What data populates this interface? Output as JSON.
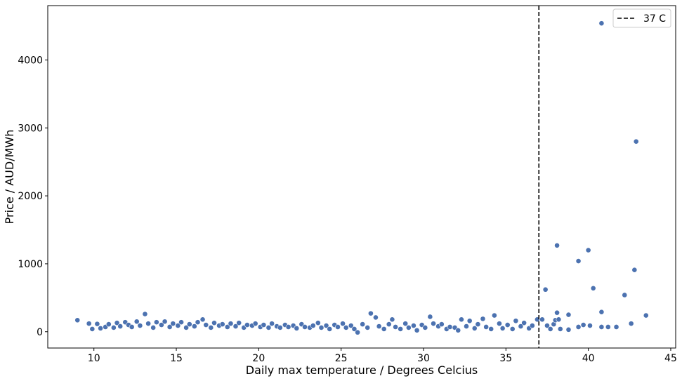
{
  "chart_data": {
    "type": "scatter",
    "xlabel": "Daily max temperature / Degrees Celcius",
    "ylabel": "Price / AUD/MWh",
    "xlim": [
      7.2,
      45.3
    ],
    "ylim": [
      -240,
      4800
    ],
    "x_ticks": [
      10,
      15,
      20,
      25,
      30,
      35,
      40,
      45
    ],
    "y_ticks": [
      0,
      1000,
      2000,
      3000,
      4000
    ],
    "grid": false,
    "marker_color": "#4c72b0",
    "marker_edge_color": "#ffffff",
    "reference_line": {
      "x": 37,
      "style": "dashed",
      "color": "#000000",
      "label": "37 C"
    },
    "legend": {
      "position": "top-right",
      "entries": [
        "37 C"
      ]
    },
    "series": [
      {
        "points": [
          {
            "x": 9.0,
            "y": 170
          },
          {
            "x": 9.7,
            "y": 120
          },
          {
            "x": 9.9,
            "y": 40
          },
          {
            "x": 10.2,
            "y": 115
          },
          {
            "x": 10.4,
            "y": 50
          },
          {
            "x": 10.7,
            "y": 70
          },
          {
            "x": 10.9,
            "y": 110
          },
          {
            "x": 11.2,
            "y": 60
          },
          {
            "x": 11.4,
            "y": 130
          },
          {
            "x": 11.6,
            "y": 80
          },
          {
            "x": 11.9,
            "y": 140
          },
          {
            "x": 12.1,
            "y": 100
          },
          {
            "x": 12.3,
            "y": 70
          },
          {
            "x": 12.6,
            "y": 150
          },
          {
            "x": 12.8,
            "y": 90
          },
          {
            "x": 13.1,
            "y": 260
          },
          {
            "x": 13.3,
            "y": 120
          },
          {
            "x": 13.6,
            "y": 60
          },
          {
            "x": 13.8,
            "y": 140
          },
          {
            "x": 14.1,
            "y": 100
          },
          {
            "x": 14.3,
            "y": 150
          },
          {
            "x": 14.6,
            "y": 70
          },
          {
            "x": 14.8,
            "y": 120
          },
          {
            "x": 15.1,
            "y": 90
          },
          {
            "x": 15.3,
            "y": 140
          },
          {
            "x": 15.6,
            "y": 60
          },
          {
            "x": 15.8,
            "y": 110
          },
          {
            "x": 16.1,
            "y": 80
          },
          {
            "x": 16.3,
            "y": 140
          },
          {
            "x": 16.6,
            "y": 180
          },
          {
            "x": 16.8,
            "y": 100
          },
          {
            "x": 17.1,
            "y": 60
          },
          {
            "x": 17.3,
            "y": 130
          },
          {
            "x": 17.6,
            "y": 90
          },
          {
            "x": 17.8,
            "y": 110
          },
          {
            "x": 18.1,
            "y": 70
          },
          {
            "x": 18.3,
            "y": 120
          },
          {
            "x": 18.6,
            "y": 80
          },
          {
            "x": 18.8,
            "y": 130
          },
          {
            "x": 19.1,
            "y": 60
          },
          {
            "x": 19.3,
            "y": 100
          },
          {
            "x": 19.6,
            "y": 90
          },
          {
            "x": 19.8,
            "y": 120
          },
          {
            "x": 20.1,
            "y": 70
          },
          {
            "x": 20.3,
            "y": 100
          },
          {
            "x": 20.6,
            "y": 60
          },
          {
            "x": 20.8,
            "y": 120
          },
          {
            "x": 21.1,
            "y": 80
          },
          {
            "x": 21.3,
            "y": 60
          },
          {
            "x": 21.6,
            "y": 100
          },
          {
            "x": 21.8,
            "y": 70
          },
          {
            "x": 22.1,
            "y": 90
          },
          {
            "x": 22.3,
            "y": 50
          },
          {
            "x": 22.6,
            "y": 110
          },
          {
            "x": 22.8,
            "y": 70
          },
          {
            "x": 23.1,
            "y": 60
          },
          {
            "x": 23.3,
            "y": 90
          },
          {
            "x": 23.6,
            "y": 130
          },
          {
            "x": 23.8,
            "y": 60
          },
          {
            "x": 24.1,
            "y": 90
          },
          {
            "x": 24.3,
            "y": 40
          },
          {
            "x": 24.6,
            "y": 100
          },
          {
            "x": 24.8,
            "y": 70
          },
          {
            "x": 25.1,
            "y": 120
          },
          {
            "x": 25.3,
            "y": 60
          },
          {
            "x": 25.6,
            "y": 90
          },
          {
            "x": 25.8,
            "y": 40
          },
          {
            "x": 26.0,
            "y": -10
          },
          {
            "x": 26.3,
            "y": 110
          },
          {
            "x": 26.6,
            "y": 60
          },
          {
            "x": 26.8,
            "y": 270
          },
          {
            "x": 27.1,
            "y": 210
          },
          {
            "x": 27.3,
            "y": 80
          },
          {
            "x": 27.6,
            "y": 40
          },
          {
            "x": 27.9,
            "y": 110
          },
          {
            "x": 28.1,
            "y": 180
          },
          {
            "x": 28.3,
            "y": 70
          },
          {
            "x": 28.6,
            "y": 40
          },
          {
            "x": 28.9,
            "y": 120
          },
          {
            "x": 29.1,
            "y": 60
          },
          {
            "x": 29.4,
            "y": 90
          },
          {
            "x": 29.6,
            "y": 20
          },
          {
            "x": 29.9,
            "y": 100
          },
          {
            "x": 30.1,
            "y": 60
          },
          {
            "x": 30.4,
            "y": 220
          },
          {
            "x": 30.6,
            "y": 120
          },
          {
            "x": 30.9,
            "y": 80
          },
          {
            "x": 31.1,
            "y": 110
          },
          {
            "x": 31.4,
            "y": 40
          },
          {
            "x": 31.6,
            "y": 70
          },
          {
            "x": 31.9,
            "y": 60
          },
          {
            "x": 32.1,
            "y": 20
          },
          {
            "x": 32.3,
            "y": 180
          },
          {
            "x": 32.6,
            "y": 80
          },
          {
            "x": 32.8,
            "y": 160
          },
          {
            "x": 33.1,
            "y": 50
          },
          {
            "x": 33.3,
            "y": 110
          },
          {
            "x": 33.6,
            "y": 190
          },
          {
            "x": 33.8,
            "y": 70
          },
          {
            "x": 34.1,
            "y": 40
          },
          {
            "x": 34.3,
            "y": 240
          },
          {
            "x": 34.6,
            "y": 120
          },
          {
            "x": 34.8,
            "y": 50
          },
          {
            "x": 35.1,
            "y": 100
          },
          {
            "x": 35.4,
            "y": 40
          },
          {
            "x": 35.6,
            "y": 160
          },
          {
            "x": 35.9,
            "y": 80
          },
          {
            "x": 36.1,
            "y": 130
          },
          {
            "x": 36.4,
            "y": 50
          },
          {
            "x": 36.6,
            "y": 90
          },
          {
            "x": 36.9,
            "y": 180
          },
          {
            "x": 37.2,
            "y": 180
          },
          {
            "x": 37.4,
            "y": 620
          },
          {
            "x": 37.5,
            "y": 90
          },
          {
            "x": 37.7,
            "y": 40
          },
          {
            "x": 37.9,
            "y": 110
          },
          {
            "x": 38.0,
            "y": 170
          },
          {
            "x": 38.1,
            "y": 1270
          },
          {
            "x": 38.1,
            "y": 280
          },
          {
            "x": 38.3,
            "y": 40
          },
          {
            "x": 38.2,
            "y": 180
          },
          {
            "x": 38.8,
            "y": 250
          },
          {
            "x": 38.8,
            "y": 30
          },
          {
            "x": 39.4,
            "y": 1040
          },
          {
            "x": 39.4,
            "y": 70
          },
          {
            "x": 39.7,
            "y": 100
          },
          {
            "x": 40.0,
            "y": 1200
          },
          {
            "x": 40.1,
            "y": 90
          },
          {
            "x": 40.3,
            "y": 640
          },
          {
            "x": 40.8,
            "y": 4540
          },
          {
            "x": 40.8,
            "y": 290
          },
          {
            "x": 40.8,
            "y": 70
          },
          {
            "x": 41.2,
            "y": 70
          },
          {
            "x": 41.7,
            "y": 70
          },
          {
            "x": 42.2,
            "y": 540
          },
          {
            "x": 42.6,
            "y": 120
          },
          {
            "x": 42.8,
            "y": 910
          },
          {
            "x": 42.9,
            "y": 2800
          },
          {
            "x": 43.5,
            "y": 240
          }
        ]
      }
    ]
  }
}
